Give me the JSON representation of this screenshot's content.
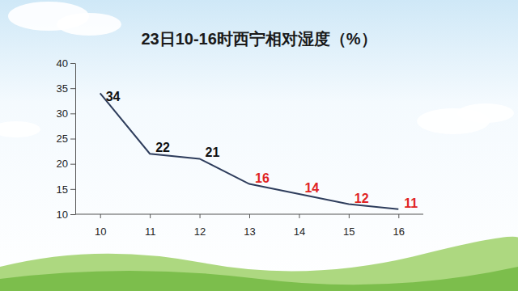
{
  "chart_data": {
    "type": "line",
    "title": "23日10-16时西宁相对湿度（%）",
    "categories": [
      "10",
      "11",
      "12",
      "13",
      "14",
      "15",
      "16"
    ],
    "values": [
      34,
      22,
      21,
      16,
      14,
      12,
      11
    ],
    "color": "#2e3d5c",
    "colors": [
      "#111111",
      "#111111",
      "#111111",
      "#e02424",
      "#e02424",
      "#e02424",
      "#e02424"
    ],
    "ylim": [
      10,
      40
    ],
    "yticks": [
      10,
      15,
      20,
      25,
      30,
      35,
      40
    ],
    "grid": false,
    "data_labels": true
  }
}
